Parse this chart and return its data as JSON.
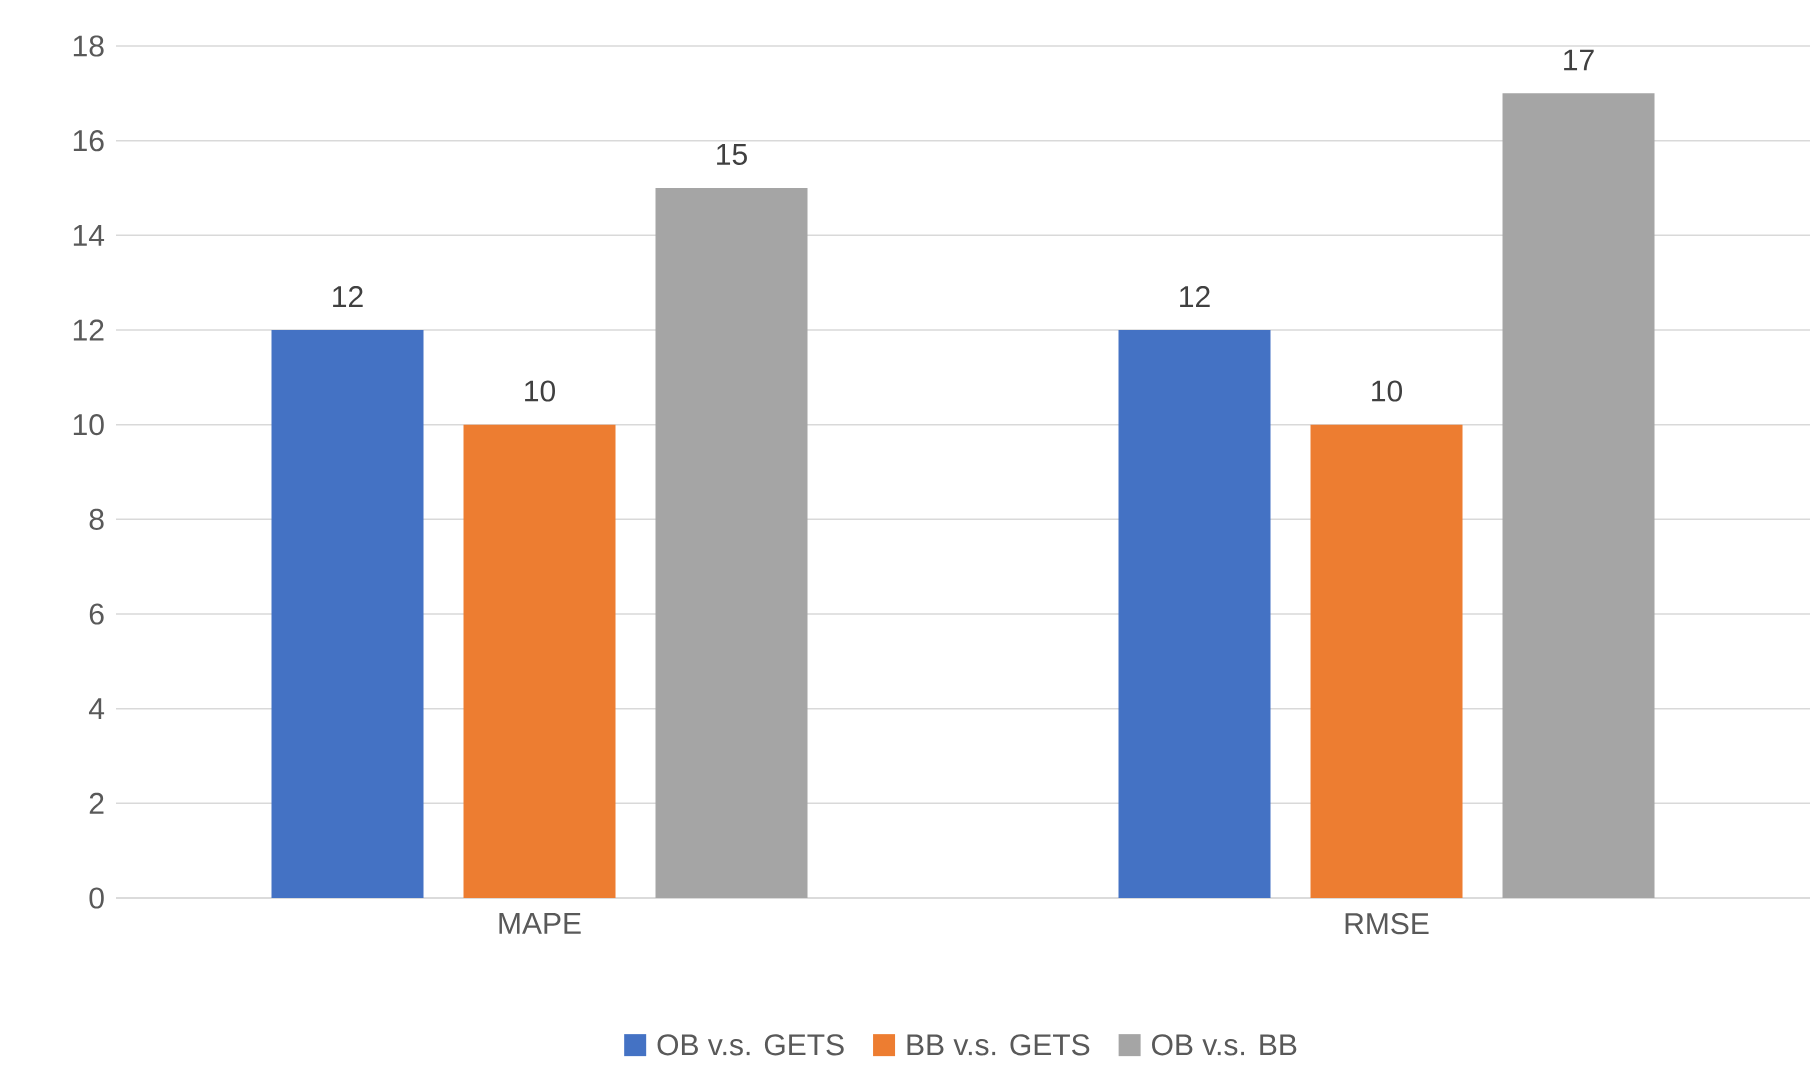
{
  "chart_data": {
    "type": "bar",
    "categories": [
      "MAPE",
      "RMSE"
    ],
    "series": [
      {
        "name": "OB v.s. GETS",
        "color": "#4472c4",
        "values": [
          12,
          12
        ]
      },
      {
        "name": "BB v.s. GETS",
        "color": "#ed7d31",
        "values": [
          10,
          10
        ]
      },
      {
        "name": "OB v.s. BB",
        "color": "#a5a5a5",
        "values": [
          15,
          17
        ]
      }
    ],
    "ylim": [
      0,
      18
    ],
    "yticks": [
      0,
      2,
      4,
      6,
      8,
      10,
      12,
      14,
      16,
      18
    ],
    "grid": "y",
    "legend": "bottom",
    "data_labels": true
  }
}
